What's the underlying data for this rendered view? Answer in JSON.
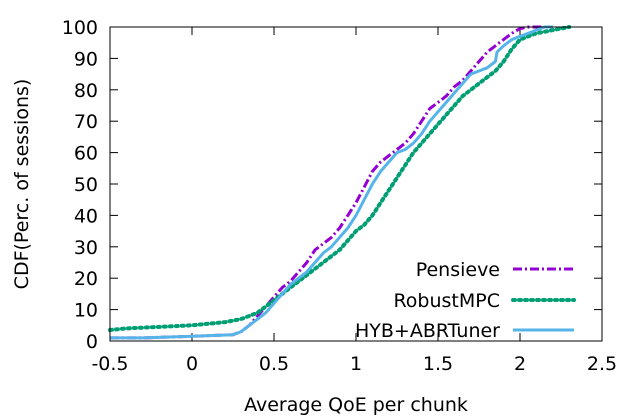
{
  "chart_data": {
    "type": "line",
    "title": "",
    "xlabel": "Average QoE per chunk",
    "ylabel": "CDF(Perc. of sessions)",
    "xlim": [
      -0.5,
      2.5
    ],
    "ylim": [
      0,
      100
    ],
    "xticks": [
      -0.5,
      0,
      0.5,
      1,
      1.5,
      2,
      2.5
    ],
    "xtick_labels": [
      "-0.5",
      "0",
      "0.5",
      "1",
      "1.5",
      "2",
      "2.5"
    ],
    "yticks": [
      0,
      10,
      20,
      30,
      40,
      50,
      60,
      70,
      80,
      90,
      100
    ],
    "ytick_labels": [
      "0",
      "10",
      "20",
      "30",
      "40",
      "50",
      "60",
      "70",
      "80",
      "90",
      "100"
    ],
    "grid": false,
    "legend_position": "bottom-right",
    "series": [
      {
        "name": "Pensieve",
        "color": "#9400D3",
        "style": "dash-dot",
        "x": [
          -0.5,
          -0.3,
          0.0,
          0.25,
          0.3,
          0.35,
          0.4,
          0.45,
          0.5,
          0.55,
          0.6,
          0.65,
          0.7,
          0.75,
          0.8,
          0.85,
          0.9,
          0.95,
          1.0,
          1.05,
          1.1,
          1.15,
          1.2,
          1.25,
          1.3,
          1.35,
          1.4,
          1.45,
          1.5,
          1.55,
          1.6,
          1.65,
          1.7,
          1.75,
          1.8,
          1.85,
          1.9,
          1.95,
          2.0,
          2.05,
          2.1,
          2.15,
          2.2
        ],
        "y": [
          1,
          1,
          1.5,
          2,
          3,
          5,
          8,
          11,
          14,
          17,
          19,
          22,
          25,
          29,
          31,
          33,
          36,
          40,
          44,
          49,
          54,
          57,
          59,
          61,
          63,
          66,
          70,
          74,
          76,
          78,
          81,
          83,
          86,
          89,
          92,
          94,
          96,
          98,
          99.5,
          100,
          100,
          100,
          100
        ]
      },
      {
        "name": "RobustMPC",
        "color": "#009E73",
        "style": "dotted",
        "x": [
          -0.5,
          -0.4,
          -0.2,
          0.0,
          0.1,
          0.2,
          0.3,
          0.35,
          0.4,
          0.45,
          0.5,
          0.55,
          0.6,
          0.65,
          0.7,
          0.75,
          0.8,
          0.85,
          0.9,
          0.95,
          1.0,
          1.05,
          1.1,
          1.15,
          1.2,
          1.25,
          1.3,
          1.35,
          1.4,
          1.45,
          1.5,
          1.55,
          1.6,
          1.65,
          1.7,
          1.75,
          1.8,
          1.85,
          1.9,
          1.95,
          2.0,
          2.05,
          2.1,
          2.2,
          2.3
        ],
        "y": [
          3.5,
          4,
          4.5,
          5,
          5.5,
          6,
          7,
          8,
          9,
          11,
          13,
          15,
          17,
          19,
          21,
          23,
          25,
          27,
          29,
          32,
          35,
          37,
          40,
          44,
          48,
          52,
          56,
          60,
          63,
          66,
          69,
          72,
          75,
          78,
          80,
          82,
          84,
          86,
          89,
          93,
          96,
          97,
          98,
          99,
          100
        ]
      },
      {
        "name": "HYB+ABRTuner",
        "color": "#56B4E9",
        "style": "solid",
        "x": [
          -0.5,
          -0.3,
          0.0,
          0.25,
          0.3,
          0.35,
          0.4,
          0.45,
          0.5,
          0.55,
          0.6,
          0.65,
          0.7,
          0.75,
          0.8,
          0.85,
          0.9,
          0.95,
          1.0,
          1.05,
          1.1,
          1.15,
          1.2,
          1.25,
          1.3,
          1.35,
          1.4,
          1.45,
          1.5,
          1.55,
          1.6,
          1.65,
          1.7,
          1.75,
          1.8,
          1.85,
          1.86,
          1.9,
          1.95,
          2.0,
          2.05,
          2.1,
          2.15,
          2.2
        ],
        "y": [
          1,
          1,
          1.5,
          2,
          3,
          5,
          7,
          9,
          12,
          15,
          18,
          20,
          22,
          25,
          28,
          30,
          33,
          36,
          40,
          45,
          50,
          54,
          57,
          60,
          61,
          63,
          66,
          70,
          73,
          76,
          79,
          82,
          85,
          86,
          87,
          89,
          92,
          94,
          96,
          97,
          98,
          99,
          100,
          100
        ]
      }
    ]
  }
}
